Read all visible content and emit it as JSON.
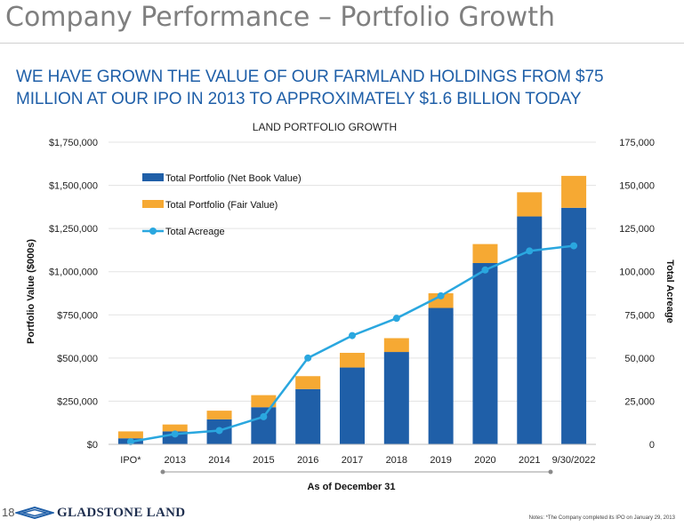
{
  "slide": {
    "title": "Company Performance – Portfolio Growth",
    "headline": "WE HAVE GROWN THE VALUE OF OUR FARMLAND HOLDINGS FROM $75 MILLION AT OUR IPO IN 2013 TO APPROXIMATELY $1.6 BILLION TODAY",
    "page_number": "18",
    "brand": "GLADSTONE LAND",
    "footnote": "Notes: *The Company completed its IPO on January 29, 2013"
  },
  "chart_data": {
    "type": "bar",
    "stacked": true,
    "title": "LAND PORTFOLIO GROWTH",
    "xlabel": "As of December 31",
    "ylabel": "Portfolio Value ($000s)",
    "y2label": "Total Acreage",
    "categories": [
      "IPO*",
      "2013",
      "2014",
      "2015",
      "2016",
      "2017",
      "2018",
      "2019",
      "2020",
      "2021",
      "9/30/2022"
    ],
    "ylim": [
      0,
      1750000
    ],
    "y2lim": [
      0,
      175000
    ],
    "yticks": [
      "$0",
      "$250,000",
      "$500,000",
      "$750,000",
      "$1,000,000",
      "$1,250,000",
      "$1,500,000",
      "$1,750,000"
    ],
    "y2ticks": [
      "0",
      "25,000",
      "50,000",
      "75,000",
      "100,000",
      "125,000",
      "150,000",
      "175,000"
    ],
    "legend_position": "top-left",
    "grid": true,
    "series": [
      {
        "name": "Total Portfolio (Net Book Value)",
        "kind": "bar",
        "color": "#1f5fa8",
        "values": [
          35000,
          75000,
          145000,
          215000,
          320000,
          445000,
          535000,
          790000,
          1050000,
          1320000,
          1370000
        ]
      },
      {
        "name": "Total Portfolio (Fair Value)",
        "kind": "bar",
        "color": "#f6a933",
        "values": [
          40000,
          40000,
          50000,
          70000,
          75000,
          85000,
          80000,
          85000,
          110000,
          140000,
          185000
        ]
      },
      {
        "name": "Total Acreage",
        "kind": "line",
        "axis": "right",
        "color": "#2aa7df",
        "values": [
          1500,
          6000,
          8000,
          16000,
          50000,
          63000,
          73000,
          86000,
          101000,
          112000,
          115000
        ]
      }
    ]
  }
}
